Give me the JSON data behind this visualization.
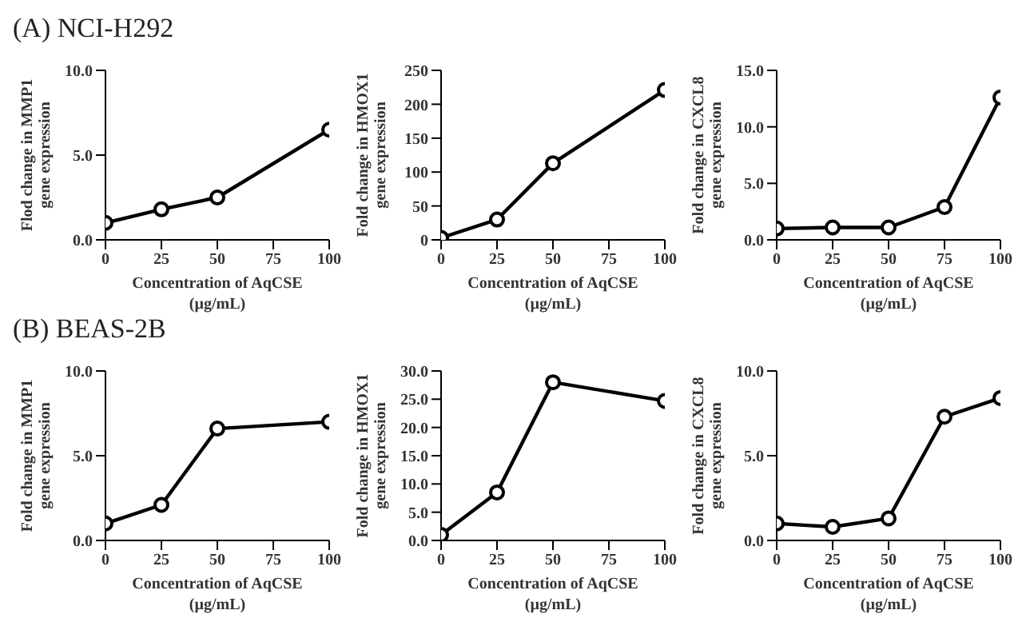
{
  "chart_data": [
    {
      "type": "line",
      "title": "(A) NCI-H292",
      "xlabel": "Concentration of AqCSE\n(µg/mL)",
      "ylabel": "Flod change in MMP1\ngene expression",
      "x": [
        0,
        25,
        50,
        100
      ],
      "xlim": [
        0,
        100
      ],
      "xticks": [
        0,
        25,
        50,
        75,
        100
      ],
      "ylim": [
        0,
        10
      ],
      "yticks": [
        {
          "value": 0,
          "label": "0.0"
        },
        {
          "value": 5,
          "label": "5.0"
        },
        {
          "value": 10,
          "label": "10.0"
        }
      ],
      "marker": "circle",
      "line_style": "solid",
      "series": [
        {
          "color": "#000000",
          "values": [
            1.0,
            1.8,
            2.5,
            6.5
          ]
        }
      ]
    },
    {
      "type": "line",
      "xlabel": "Concentration of AqCSE\n(µg/mL)",
      "ylabel": "Fold change in HMOX1\ngene expression",
      "x": [
        0,
        25,
        50,
        100
      ],
      "xlim": [
        0,
        100
      ],
      "xticks": [
        0,
        25,
        50,
        75,
        100
      ],
      "ylim": [
        0,
        250
      ],
      "yticks": [
        0,
        50,
        100,
        150,
        200,
        250
      ],
      "marker": "circle",
      "line_style": "solid",
      "series": [
        {
          "color": "#000000",
          "values": [
            3,
            30,
            113,
            221
          ]
        }
      ]
    },
    {
      "type": "line",
      "xlabel": "Concentration of AqCSE\n(µg/mL)",
      "ylabel": "Fold change in CXCL8\ngene expression",
      "x": [
        0,
        25,
        50,
        75,
        100
      ],
      "xlim": [
        0,
        100
      ],
      "xticks": [
        0,
        25,
        50,
        75,
        100
      ],
      "ylim": [
        0,
        15
      ],
      "yticks": [
        {
          "value": 0,
          "label": "0.0"
        },
        {
          "value": 5,
          "label": "5.0"
        },
        {
          "value": 10,
          "label": "10.0"
        },
        {
          "value": 15,
          "label": "15.0"
        }
      ],
      "marker": "circle",
      "line_style": "solid",
      "series": [
        {
          "color": "#000000",
          "values": [
            1.0,
            1.1,
            1.1,
            2.9,
            12.6
          ]
        }
      ]
    },
    {
      "type": "line",
      "title": "(B) BEAS-2B",
      "xlabel": "Concentration of AqCSE\n(µg/mL)",
      "ylabel": "Fold change in MMP1\ngene expression",
      "x": [
        0,
        25,
        50,
        100
      ],
      "xlim": [
        0,
        100
      ],
      "xticks": [
        0,
        25,
        50,
        75,
        100
      ],
      "ylim": [
        0,
        10
      ],
      "yticks": [
        {
          "value": 0,
          "label": "0.0"
        },
        {
          "value": 5,
          "label": "5.0"
        },
        {
          "value": 10,
          "label": "10.0"
        }
      ],
      "marker": "circle",
      "line_style": "solid",
      "series": [
        {
          "color": "#000000",
          "values": [
            1.0,
            2.1,
            6.6,
            7.0
          ]
        }
      ]
    },
    {
      "type": "line",
      "xlabel": "Concentration of AqCSE\n(µg/mL)",
      "ylabel": "Fold change in HMOX1\ngene expression",
      "x": [
        0,
        25,
        50,
        100
      ],
      "xlim": [
        0,
        100
      ],
      "xticks": [
        0,
        25,
        50,
        75,
        100
      ],
      "ylim": [
        0,
        30
      ],
      "yticks": [
        {
          "value": 0,
          "label": "0.0"
        },
        {
          "value": 5,
          "label": "5.0"
        },
        {
          "value": 10,
          "label": "10.0"
        },
        {
          "value": 15,
          "label": "15.0"
        },
        {
          "value": 20,
          "label": "20.0"
        },
        {
          "value": 25,
          "label": "25.0"
        },
        {
          "value": 30,
          "label": "30.0"
        }
      ],
      "marker": "circle",
      "line_style": "solid",
      "series": [
        {
          "color": "#000000",
          "values": [
            1.0,
            8.5,
            28.0,
            24.7
          ]
        }
      ]
    },
    {
      "type": "line",
      "xlabel": "Concentration of AqCSE\n(µg/mL)",
      "ylabel": "Fold change in CXCL8\ngene expression",
      "x": [
        0,
        25,
        50,
        75,
        100
      ],
      "xlim": [
        0,
        100
      ],
      "xticks": [
        0,
        25,
        50,
        75,
        100
      ],
      "ylim": [
        0,
        10
      ],
      "yticks": [
        {
          "value": 0,
          "label": "0.0"
        },
        {
          "value": 5,
          "label": "5.0"
        },
        {
          "value": 10,
          "label": "10.0"
        }
      ],
      "marker": "circle",
      "line_style": "solid",
      "series": [
        {
          "color": "#000000",
          "values": [
            1.0,
            0.8,
            1.3,
            7.3,
            8.4
          ]
        }
      ]
    }
  ]
}
